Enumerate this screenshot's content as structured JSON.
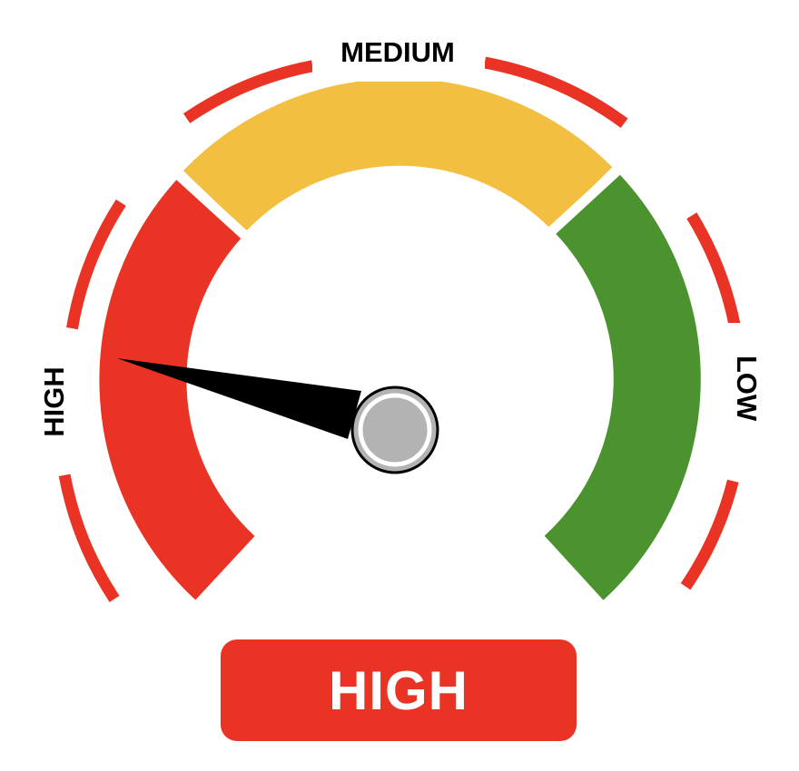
{
  "gauge": {
    "labels": {
      "high": "HIGH",
      "medium": "MEDIUM",
      "low": "LOW"
    },
    "zones": [
      "high",
      "medium",
      "low"
    ],
    "current_zone": "high",
    "colors": {
      "high": "#E93324",
      "medium": "#F3BF41",
      "low": "#4A932F",
      "needle": "#000000",
      "hub": "#B3B3B3"
    }
  },
  "status": {
    "label": "HIGH"
  }
}
